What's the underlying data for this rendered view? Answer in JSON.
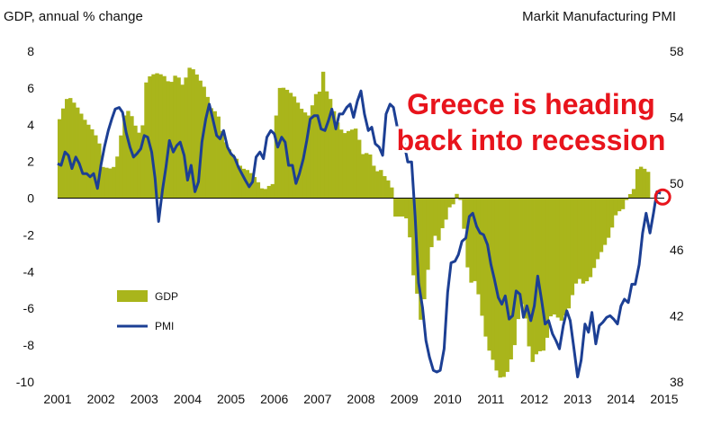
{
  "chart_data": {
    "type": "bar+line",
    "left_axis_title": "GDP, annual % change",
    "right_axis_title": "Markit Manufacturing PMI",
    "annotation_lines": [
      "Greece is heading",
      "back into recession"
    ],
    "left_axis": {
      "range": [
        -10,
        8
      ],
      "ticks": [
        "8",
        "6",
        "4",
        "2",
        "0",
        "-2",
        "-4",
        "-6",
        "-8",
        "-10"
      ]
    },
    "right_axis": {
      "range": [
        38,
        58
      ],
      "ticks": [
        "58",
        "54",
        "50",
        "46",
        "42",
        "38"
      ]
    },
    "x_ticks": [
      "2001",
      "2002",
      "2003",
      "2004",
      "2005",
      "2006",
      "2007",
      "2008",
      "2009",
      "2010",
      "2011",
      "2012",
      "2013",
      "2014",
      "2015"
    ],
    "x_range": [
      2001,
      2015
    ],
    "colors": {
      "gdp": "#a9b51b",
      "pmi": "#1c3f94",
      "annotation": "#e8141c"
    },
    "series": [
      {
        "name": "GDP",
        "axis": "left",
        "kind": "bar",
        "points": [
          [
            2001.0,
            4.3
          ],
          [
            2001.1,
            5.0
          ],
          [
            2001.2,
            5.6
          ],
          [
            2001.4,
            5.0
          ],
          [
            2001.6,
            4.2
          ],
          [
            2001.8,
            3.6
          ],
          [
            2001.95,
            2.8
          ],
          [
            2002.0,
            1.7
          ],
          [
            2002.2,
            1.6
          ],
          [
            2002.3,
            1.8
          ],
          [
            2002.4,
            3.2
          ],
          [
            2002.5,
            4.5
          ],
          [
            2002.6,
            4.8
          ],
          [
            2002.7,
            4.3
          ],
          [
            2002.8,
            3.6
          ],
          [
            2002.9,
            3.5
          ],
          [
            2003.0,
            6.3
          ],
          [
            2003.1,
            6.7
          ],
          [
            2003.25,
            6.8
          ],
          [
            2003.4,
            6.7
          ],
          [
            2003.55,
            6.2
          ],
          [
            2003.7,
            6.8
          ],
          [
            2003.85,
            6.1
          ],
          [
            2003.95,
            6.8
          ],
          [
            2004.0,
            7.1
          ],
          [
            2004.1,
            7.0
          ],
          [
            2004.2,
            6.6
          ],
          [
            2004.35,
            6.0
          ],
          [
            2004.5,
            4.9
          ],
          [
            2004.65,
            4.6
          ],
          [
            2004.8,
            3.2
          ],
          [
            2004.95,
            2.5
          ],
          [
            2005.1,
            2.1
          ],
          [
            2005.2,
            1.6
          ],
          [
            2005.3,
            1.6
          ],
          [
            2005.45,
            1.3
          ],
          [
            2005.55,
            1.0
          ],
          [
            2005.7,
            0.4
          ],
          [
            2005.85,
            0.7
          ],
          [
            2005.95,
            0.8
          ],
          [
            2006.0,
            4.5
          ],
          [
            2006.05,
            5.8
          ],
          [
            2006.1,
            6.1
          ],
          [
            2006.25,
            5.9
          ],
          [
            2006.4,
            5.6
          ],
          [
            2006.6,
            4.8
          ],
          [
            2006.75,
            4.5
          ],
          [
            2006.9,
            5.5
          ],
          [
            2006.95,
            6.0
          ],
          [
            2007.0,
            5.8
          ],
          [
            2007.1,
            7.1
          ],
          [
            2007.15,
            5.9
          ],
          [
            2007.25,
            5.4
          ],
          [
            2007.4,
            4.2
          ],
          [
            2007.55,
            3.5
          ],
          [
            2007.7,
            3.7
          ],
          [
            2007.85,
            3.8
          ],
          [
            2008.0,
            2.4
          ],
          [
            2008.15,
            2.5
          ],
          [
            2008.3,
            1.4
          ],
          [
            2008.4,
            1.6
          ],
          [
            2008.55,
            1.0
          ],
          [
            2008.65,
            0.9
          ],
          [
            2008.75,
            -1.0
          ],
          [
            2008.85,
            -1.0
          ],
          [
            2008.95,
            -1.0
          ],
          [
            2009.05,
            -1.2
          ],
          [
            2009.15,
            -4.0
          ],
          [
            2009.25,
            -5.2
          ],
          [
            2009.35,
            -6.9
          ],
          [
            2009.45,
            -4.8
          ],
          [
            2009.55,
            -3.0
          ],
          [
            2009.65,
            -2.0
          ],
          [
            2009.75,
            -2.3
          ],
          [
            2009.85,
            -1.5
          ],
          [
            2009.95,
            -1.0
          ],
          [
            2010.0,
            -0.5
          ],
          [
            2010.1,
            -0.3
          ],
          [
            2010.2,
            0.5
          ],
          [
            2010.3,
            -0.7
          ],
          [
            2010.4,
            -3.6
          ],
          [
            2010.5,
            -4.6
          ],
          [
            2010.6,
            -4.5
          ],
          [
            2010.7,
            -5.6
          ],
          [
            2010.8,
            -7.2
          ],
          [
            2010.9,
            -8.2
          ],
          [
            2011.0,
            -8.8
          ],
          [
            2011.1,
            -9.5
          ],
          [
            2011.2,
            -9.9
          ],
          [
            2011.35,
            -9.4
          ],
          [
            2011.5,
            -8.0
          ],
          [
            2011.6,
            -6.3
          ],
          [
            2011.7,
            -5.5
          ],
          [
            2011.8,
            -7.6
          ],
          [
            2011.9,
            -9.0
          ],
          [
            2012.0,
            -8.5
          ],
          [
            2012.1,
            -8.3
          ],
          [
            2012.2,
            -8.3
          ],
          [
            2012.35,
            -6.2
          ],
          [
            2012.5,
            -6.5
          ],
          [
            2012.6,
            -6.7
          ],
          [
            2012.75,
            -6.0
          ],
          [
            2012.9,
            -4.7
          ],
          [
            2013.0,
            -4.4
          ],
          [
            2013.1,
            -4.7
          ],
          [
            2013.25,
            -4.3
          ],
          [
            2013.4,
            -3.4
          ],
          [
            2013.55,
            -2.7
          ],
          [
            2013.7,
            -2.0
          ],
          [
            2013.85,
            -0.8
          ],
          [
            2014.0,
            -0.6
          ],
          [
            2014.1,
            0.0
          ],
          [
            2014.25,
            0.5
          ],
          [
            2014.35,
            1.8
          ],
          [
            2014.5,
            1.6
          ],
          [
            2014.65,
            1.3
          ]
        ]
      },
      {
        "name": "PMI",
        "axis": "right",
        "kind": "line",
        "points": [
          [
            2001.0,
            51.2
          ],
          [
            2001.08,
            51.1
          ],
          [
            2001.17,
            51.9
          ],
          [
            2001.25,
            51.7
          ],
          [
            2001.33,
            50.9
          ],
          [
            2001.42,
            51.6
          ],
          [
            2001.5,
            51.2
          ],
          [
            2001.58,
            50.6
          ],
          [
            2001.67,
            50.6
          ],
          [
            2001.75,
            50.4
          ],
          [
            2001.83,
            50.6
          ],
          [
            2001.92,
            49.7
          ],
          [
            2002.0,
            51.1
          ],
          [
            2002.08,
            52.2
          ],
          [
            2002.17,
            53.2
          ],
          [
            2002.25,
            53.9
          ],
          [
            2002.33,
            54.5
          ],
          [
            2002.42,
            54.6
          ],
          [
            2002.5,
            54.3
          ],
          [
            2002.58,
            53.1
          ],
          [
            2002.67,
            52.2
          ],
          [
            2002.75,
            51.6
          ],
          [
            2002.83,
            51.8
          ],
          [
            2002.92,
            52.1
          ],
          [
            2003.0,
            52.9
          ],
          [
            2003.08,
            52.8
          ],
          [
            2003.17,
            51.9
          ],
          [
            2003.25,
            50.3
          ],
          [
            2003.33,
            47.7
          ],
          [
            2003.42,
            49.6
          ],
          [
            2003.5,
            51.0
          ],
          [
            2003.58,
            52.6
          ],
          [
            2003.67,
            51.9
          ],
          [
            2003.75,
            52.3
          ],
          [
            2003.83,
            52.5
          ],
          [
            2003.92,
            51.7
          ],
          [
            2004.0,
            50.2
          ],
          [
            2004.08,
            51.1
          ],
          [
            2004.17,
            49.5
          ],
          [
            2004.25,
            50.1
          ],
          [
            2004.33,
            52.5
          ],
          [
            2004.42,
            53.9
          ],
          [
            2004.5,
            54.8
          ],
          [
            2004.58,
            53.9
          ],
          [
            2004.67,
            52.9
          ],
          [
            2004.75,
            52.7
          ],
          [
            2004.83,
            53.2
          ],
          [
            2004.92,
            52.2
          ],
          [
            2005.0,
            51.8
          ],
          [
            2005.08,
            51.6
          ],
          [
            2005.17,
            51.0
          ],
          [
            2005.25,
            50.6
          ],
          [
            2005.33,
            50.2
          ],
          [
            2005.42,
            49.8
          ],
          [
            2005.5,
            50.1
          ],
          [
            2005.58,
            51.6
          ],
          [
            2005.67,
            51.9
          ],
          [
            2005.75,
            51.5
          ],
          [
            2005.83,
            52.8
          ],
          [
            2005.92,
            53.2
          ],
          [
            2006.0,
            53.0
          ],
          [
            2006.08,
            52.2
          ],
          [
            2006.17,
            52.8
          ],
          [
            2006.25,
            52.5
          ],
          [
            2006.33,
            51.1
          ],
          [
            2006.42,
            51.1
          ],
          [
            2006.5,
            50.0
          ],
          [
            2006.58,
            50.6
          ],
          [
            2006.67,
            51.5
          ],
          [
            2006.75,
            52.6
          ],
          [
            2006.83,
            53.9
          ],
          [
            2006.92,
            54.1
          ],
          [
            2007.0,
            54.1
          ],
          [
            2007.08,
            53.3
          ],
          [
            2007.17,
            53.2
          ],
          [
            2007.25,
            53.8
          ],
          [
            2007.33,
            54.5
          ],
          [
            2007.42,
            53.3
          ],
          [
            2007.5,
            54.2
          ],
          [
            2007.58,
            54.2
          ],
          [
            2007.67,
            54.6
          ],
          [
            2007.75,
            54.8
          ],
          [
            2007.83,
            54.0
          ],
          [
            2007.92,
            55.0
          ],
          [
            2008.0,
            55.6
          ],
          [
            2008.08,
            54.2
          ],
          [
            2008.17,
            53.2
          ],
          [
            2008.25,
            53.4
          ],
          [
            2008.33,
            52.4
          ],
          [
            2008.42,
            52.2
          ],
          [
            2008.5,
            51.7
          ],
          [
            2008.58,
            54.2
          ],
          [
            2008.67,
            54.8
          ],
          [
            2008.75,
            54.6
          ],
          [
            2008.83,
            53.5
          ],
          [
            2008.92,
            52.8
          ],
          [
            2009.0,
            52.4
          ],
          [
            2009.08,
            51.3
          ],
          [
            2009.17,
            51.3
          ],
          [
            2009.25,
            48.0
          ],
          [
            2009.33,
            44.0
          ],
          [
            2009.42,
            42.5
          ],
          [
            2009.5,
            40.5
          ],
          [
            2009.58,
            39.5
          ],
          [
            2009.67,
            38.7
          ],
          [
            2009.75,
            38.6
          ],
          [
            2009.83,
            38.7
          ],
          [
            2009.92,
            40.0
          ],
          [
            2010.0,
            43.4
          ],
          [
            2010.08,
            45.2
          ],
          [
            2010.17,
            45.3
          ],
          [
            2010.25,
            45.7
          ],
          [
            2010.33,
            46.5
          ],
          [
            2010.42,
            46.7
          ],
          [
            2010.5,
            48.0
          ],
          [
            2010.58,
            48.2
          ],
          [
            2010.67,
            47.4
          ],
          [
            2010.75,
            47.0
          ],
          [
            2010.83,
            46.9
          ],
          [
            2010.92,
            46.3
          ],
          [
            2011.0,
            45.1
          ],
          [
            2011.08,
            44.2
          ],
          [
            2011.17,
            43.1
          ],
          [
            2011.25,
            42.7
          ],
          [
            2011.33,
            43.2
          ],
          [
            2011.42,
            41.8
          ],
          [
            2011.5,
            42.0
          ],
          [
            2011.58,
            43.5
          ],
          [
            2011.67,
            43.3
          ],
          [
            2011.75,
            41.9
          ],
          [
            2011.83,
            42.6
          ],
          [
            2011.92,
            41.7
          ],
          [
            2012.0,
            42.6
          ],
          [
            2012.08,
            44.4
          ],
          [
            2012.17,
            42.9
          ],
          [
            2012.25,
            41.5
          ],
          [
            2012.33,
            41.7
          ],
          [
            2012.42,
            40.9
          ],
          [
            2012.5,
            40.5
          ],
          [
            2012.58,
            40.0
          ],
          [
            2012.67,
            41.4
          ],
          [
            2012.75,
            42.3
          ],
          [
            2012.83,
            41.7
          ],
          [
            2012.92,
            39.9
          ],
          [
            2013.0,
            38.3
          ],
          [
            2013.08,
            39.3
          ],
          [
            2013.17,
            41.5
          ],
          [
            2013.25,
            41.0
          ],
          [
            2013.33,
            42.2
          ],
          [
            2013.42,
            40.3
          ],
          [
            2013.5,
            41.4
          ],
          [
            2013.58,
            41.6
          ],
          [
            2013.67,
            41.9
          ],
          [
            2013.75,
            42.0
          ],
          [
            2013.83,
            41.8
          ],
          [
            2013.92,
            41.5
          ],
          [
            2014.0,
            42.6
          ],
          [
            2014.08,
            43.0
          ],
          [
            2014.17,
            42.8
          ],
          [
            2014.25,
            43.9
          ],
          [
            2014.33,
            43.9
          ],
          [
            2014.42,
            45.1
          ],
          [
            2014.5,
            47.0
          ],
          [
            2014.58,
            48.2
          ],
          [
            2014.67,
            47.0
          ],
          [
            2014.75,
            48.2
          ],
          [
            2014.83,
            49.5
          ],
          [
            2014.92,
            49.4
          ]
        ]
      }
    ],
    "legend": [
      {
        "label": "GDP",
        "swatch": "bar"
      },
      {
        "label": "PMI",
        "swatch": "line"
      }
    ]
  }
}
